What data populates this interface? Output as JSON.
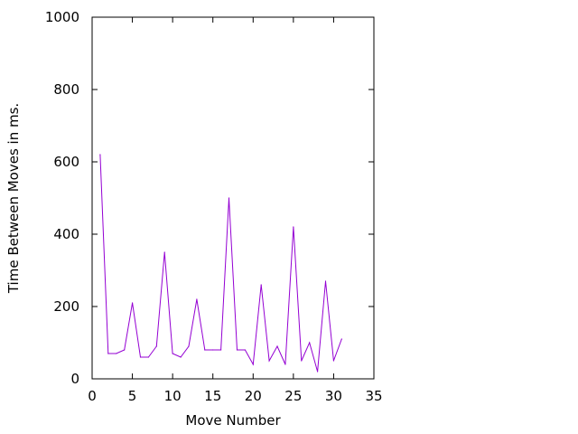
{
  "chart_data": {
    "type": "line",
    "title": "",
    "xlabel": "Move Number",
    "ylabel": "Time Between Moves in ms.",
    "xlim": [
      0,
      35
    ],
    "ylim": [
      0,
      1000
    ],
    "x_ticks": [
      0,
      5,
      10,
      15,
      20,
      25,
      30,
      35
    ],
    "y_ticks": [
      0,
      200,
      400,
      600,
      800,
      1000
    ],
    "grid": false,
    "legend": "none",
    "series": [
      {
        "color": "#9400d3",
        "x": [
          1,
          2,
          3,
          4,
          5,
          6,
          7,
          8,
          9,
          10,
          11,
          12,
          13,
          14,
          15,
          16,
          17,
          18,
          19,
          20,
          21,
          22,
          23,
          24,
          25,
          26,
          27,
          28,
          29,
          30,
          31
        ],
        "values": [
          620,
          70,
          70,
          80,
          210,
          60,
          60,
          90,
          350,
          70,
          60,
          90,
          220,
          80,
          80,
          80,
          500,
          80,
          80,
          40,
          260,
          50,
          90,
          40,
          420,
          50,
          100,
          20,
          270,
          50,
          110
        ]
      }
    ]
  }
}
